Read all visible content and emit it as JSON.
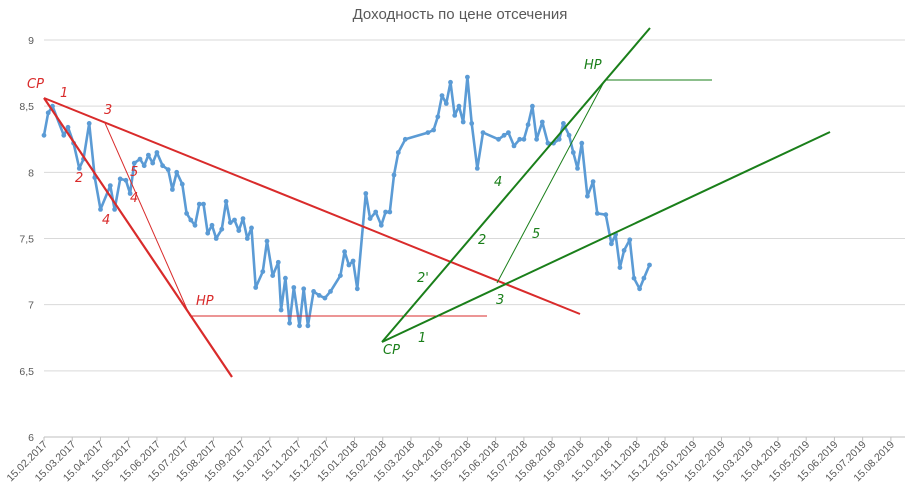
{
  "chart_data": {
    "type": "line",
    "title": "Доходность по цене отсечения",
    "xlabel": "",
    "ylabel": "",
    "ylim": [
      6,
      9
    ],
    "y_ticks": [
      6,
      6.5,
      7,
      7.5,
      8,
      8.5,
      9
    ],
    "y_tick_labels": [
      "6",
      "6,5",
      "7",
      "7,5",
      "8",
      "8,5",
      "9"
    ],
    "grid": "horizontal",
    "x_tick_labels": [
      "15.02.2017",
      "15.03.2017",
      "15.04.2017",
      "15.05.2017",
      "15.06.2017",
      "15.07.2017",
      "15.08.2017",
      "15.09.2017",
      "15.10.2017",
      "15.11.2017",
      "15.12.2017",
      "15.01.2018",
      "15.02.2018",
      "15.03.2018",
      "15.04.2018",
      "15.05.2018",
      "15.06.2018",
      "15.07.2018",
      "15.08.2018",
      "15.09.2018",
      "15.10.2018",
      "15.11.2018",
      "15.12.2018",
      "15.01.2019",
      "15.02.2019",
      "15.03.2019",
      "15.04.2019",
      "15.05.2019",
      "15.06.2019",
      "15.07.2019",
      "15.08.2019"
    ],
    "series": [
      {
        "color": "#5b9bd5",
        "points": [
          [
            0.0,
            8.28
          ],
          [
            0.15,
            8.45
          ],
          [
            0.3,
            8.5
          ],
          [
            0.7,
            8.28
          ],
          [
            0.85,
            8.34
          ],
          [
            1.05,
            8.22
          ],
          [
            1.25,
            8.03
          ],
          [
            1.4,
            8.1
          ],
          [
            1.6,
            8.37
          ],
          [
            1.8,
            7.96
          ],
          [
            2.0,
            7.72
          ],
          [
            2.35,
            7.9
          ],
          [
            2.5,
            7.72
          ],
          [
            2.7,
            7.95
          ],
          [
            2.9,
            7.94
          ],
          [
            3.05,
            7.84
          ],
          [
            3.2,
            8.07
          ],
          [
            3.4,
            8.1
          ],
          [
            3.55,
            8.05
          ],
          [
            3.7,
            8.13
          ],
          [
            3.85,
            8.07
          ],
          [
            4.0,
            8.15
          ],
          [
            4.2,
            8.05
          ],
          [
            4.4,
            8.02
          ],
          [
            4.55,
            7.87
          ],
          [
            4.7,
            8.0
          ],
          [
            4.9,
            7.91
          ],
          [
            5.05,
            7.69
          ],
          [
            5.2,
            7.64
          ],
          [
            5.35,
            7.6
          ],
          [
            5.5,
            7.76
          ],
          [
            5.65,
            7.76
          ],
          [
            5.8,
            7.54
          ],
          [
            5.95,
            7.6
          ],
          [
            6.1,
            7.5
          ],
          [
            6.3,
            7.57
          ],
          [
            6.45,
            7.78
          ],
          [
            6.6,
            7.62
          ],
          [
            6.75,
            7.64
          ],
          [
            6.9,
            7.56
          ],
          [
            7.05,
            7.65
          ],
          [
            7.2,
            7.5
          ],
          [
            7.35,
            7.58
          ],
          [
            7.5,
            7.13
          ],
          [
            7.75,
            7.25
          ],
          [
            7.9,
            7.48
          ],
          [
            8.1,
            7.22
          ],
          [
            8.3,
            7.32
          ],
          [
            8.4,
            6.96
          ],
          [
            8.55,
            7.2
          ],
          [
            8.7,
            6.86
          ],
          [
            8.85,
            7.13
          ],
          [
            9.05,
            6.84
          ],
          [
            9.2,
            7.12
          ],
          [
            9.35,
            6.84
          ],
          [
            9.55,
            7.1
          ],
          [
            9.75,
            7.07
          ],
          [
            9.95,
            7.05
          ],
          [
            10.15,
            7.1
          ],
          [
            10.5,
            7.22
          ],
          [
            10.65,
            7.4
          ],
          [
            10.8,
            7.3
          ],
          [
            10.95,
            7.33
          ],
          [
            11.1,
            7.12
          ],
          [
            11.4,
            7.84
          ],
          [
            11.55,
            7.65
          ],
          [
            11.75,
            7.7
          ],
          [
            11.95,
            7.6
          ],
          [
            12.1,
            7.7
          ],
          [
            12.25,
            7.7
          ],
          [
            12.4,
            7.98
          ],
          [
            12.55,
            8.15
          ],
          [
            12.8,
            8.25
          ],
          [
            13.6,
            8.3
          ],
          [
            13.8,
            8.32
          ],
          [
            13.95,
            8.42
          ],
          [
            14.1,
            8.58
          ],
          [
            14.25,
            8.52
          ],
          [
            14.4,
            8.68
          ],
          [
            14.55,
            8.43
          ],
          [
            14.7,
            8.5
          ],
          [
            14.85,
            8.38
          ],
          [
            15.0,
            8.72
          ],
          [
            15.15,
            8.37
          ],
          [
            15.35,
            8.03
          ],
          [
            15.55,
            8.3
          ],
          [
            16.1,
            8.25
          ],
          [
            16.3,
            8.28
          ],
          [
            16.45,
            8.3
          ],
          [
            16.65,
            8.2
          ],
          [
            16.85,
            8.25
          ],
          [
            17.0,
            8.25
          ],
          [
            17.15,
            8.36
          ],
          [
            17.3,
            8.5
          ],
          [
            17.45,
            8.25
          ],
          [
            17.65,
            8.38
          ],
          [
            17.85,
            8.22
          ],
          [
            18.05,
            8.22
          ],
          [
            18.25,
            8.25
          ],
          [
            18.4,
            8.37
          ],
          [
            18.6,
            8.28
          ],
          [
            18.75,
            8.15
          ],
          [
            18.9,
            8.03
          ],
          [
            19.05,
            8.22
          ],
          [
            19.25,
            7.82
          ],
          [
            19.45,
            7.93
          ],
          [
            19.6,
            7.69
          ],
          [
            19.9,
            7.68
          ],
          [
            20.1,
            7.46
          ],
          [
            20.25,
            7.53
          ],
          [
            20.4,
            7.28
          ],
          [
            20.55,
            7.41
          ],
          [
            20.75,
            7.49
          ],
          [
            20.9,
            7.2
          ],
          [
            21.1,
            7.12
          ],
          [
            21.25,
            7.2
          ],
          [
            21.45,
            7.3
          ]
        ]
      }
    ],
    "annotations": {
      "red": [
        "СР",
        "1",
        "2",
        "3",
        "4",
        "5",
        "4",
        "НР"
      ],
      "green": [
        "НР",
        "СР",
        "1",
        "2",
        "2'",
        "3",
        "4",
        "5"
      ],
      "red_color": "#d92b2b",
      "green_color": "#1a7f1a"
    }
  }
}
